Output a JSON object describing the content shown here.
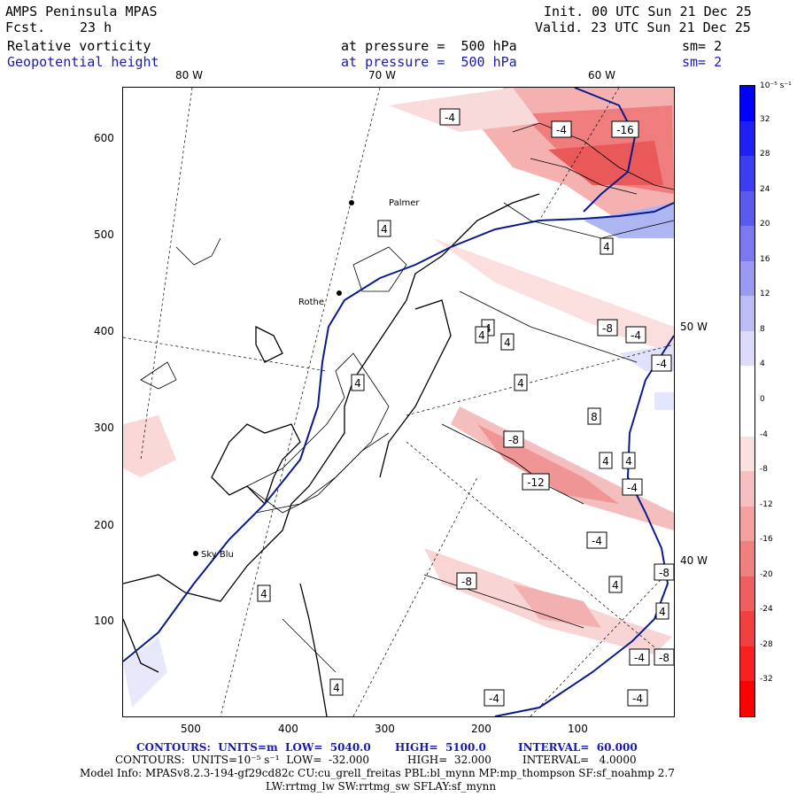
{
  "header": {
    "model": "AMPS Peninsula MPAS",
    "fcst_label": "Fcst.",
    "fcst_value": "23 h",
    "init": "Init. 00 UTC Sun 21 Dec 25",
    "valid": "Valid. 23 UTC Sun 21 Dec 25",
    "field1_name": "Relative vorticity",
    "field1_level": "at pressure =  500 hPa",
    "field1_sm": "sm= 2",
    "field2_name": "Geopotential height",
    "field2_level": "at pressure =  500 hPa",
    "field2_sm": "sm= 2"
  },
  "map": {
    "longitude_labels_top": [
      "80 W",
      "70 W",
      "60 W"
    ],
    "longitude_labels_right": [
      "50 W",
      "40 W"
    ],
    "y_ticks": [
      "600",
      "500",
      "400",
      "300",
      "200",
      "100"
    ],
    "x_ticks": [
      "500",
      "400",
      "300",
      "200",
      "100"
    ],
    "stations": [
      "Palmer",
      "Rothe",
      "Sky Blu"
    ],
    "contour_labels": [
      "-4",
      "-4",
      "-16",
      "4",
      "4",
      "4",
      "-8",
      "-4",
      "4",
      "4",
      "4",
      "-4",
      "4",
      "8",
      "4",
      "-8",
      "-12",
      "4",
      "-4",
      "-4",
      "-8",
      "4",
      "4",
      "-8",
      "4",
      "-4",
      "-8",
      "4",
      "-4",
      "-4",
      "-4"
    ],
    "colors": {
      "negative": "#e8262a",
      "positive": "#1a1aff",
      "height_contour": "#0a1a8c",
      "coast": "#000000"
    }
  },
  "colorbar": {
    "unit_label": "10⁻⁵ s⁻¹",
    "ticks": [
      "32",
      "28",
      "24",
      "20",
      "16",
      "12",
      "8",
      "4",
      "0",
      "-4",
      "-8",
      "-12",
      "-16",
      "-20",
      "-24",
      "-28",
      "-32"
    ],
    "colors": [
      "#0000ff",
      "#2020f5",
      "#3c3cf0",
      "#5a5aee",
      "#7a7aee",
      "#9a9af2",
      "#bcbcf6",
      "#dcdcfa",
      "#ffffff",
      "#ffffff",
      "#fbe0e0",
      "#f7c0c0",
      "#f2a0a0",
      "#ee8080",
      "#ee6060",
      "#f04040",
      "#f52020",
      "#ff0000"
    ]
  },
  "footer": {
    "line1_a": "CONTOURS:  UNITS=m  LOW=  5040.0",
    "line1_b": "HIGH=  5100.0",
    "line1_c": "INTERVAL=  60.000",
    "line2_a": "CONTOURS:  UNITS=10⁻⁵ s⁻¹  LOW=  -32.000",
    "line2_b": "HIGH=  32.000",
    "line2_c": "INTERVAL=   4.0000",
    "line3": "Model Info: MPASv8.2.3-194-gf29cd82c CU:cu_grell_freitas PBL:bl_mynn MP:mp_thompson SF:sf_noahmp 2.7",
    "line4": "LW:rrtmg_lw SW:rrtmg_sw SFLAY:sf_mynn"
  }
}
